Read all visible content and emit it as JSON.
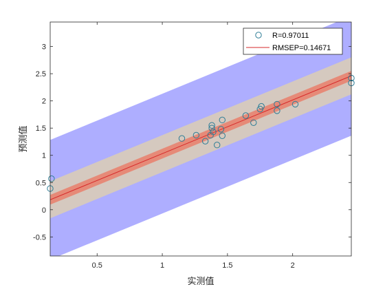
{
  "chart_data": {
    "type": "scatter",
    "xlabel": "实测值",
    "ylabel": "预测值",
    "xlim": [
      0.14,
      2.45
    ],
    "ylim": [
      -0.85,
      3.45
    ],
    "xticks": [
      "0.5",
      "1",
      "1.5",
      "2"
    ],
    "xtick_values": [
      0.5,
      1,
      1.5,
      2
    ],
    "yticks": [
      "-0.5",
      "0",
      "0.5",
      "1",
      "1.5",
      "2",
      "2.5",
      "3"
    ],
    "ytick_values": [
      -0.5,
      0,
      0.5,
      1,
      1.5,
      2,
      2.5,
      3
    ],
    "grid": false,
    "legend_position": "top-right",
    "series": [
      {
        "name": "R=0.97011",
        "kind": "scatter",
        "marker": "open-circle",
        "color": "#2e7d96",
        "x": [
          0.15,
          0.14,
          1.15,
          1.26,
          1.33,
          1.37,
          1.38,
          1.38,
          1.39,
          1.42,
          1.45,
          1.46,
          1.46,
          1.64,
          1.7,
          1.75,
          1.76,
          1.88,
          1.88,
          2.02,
          2.45,
          2.45
        ],
        "y": [
          0.57,
          0.39,
          1.31,
          1.37,
          1.26,
          1.37,
          1.5,
          1.55,
          1.43,
          1.19,
          1.48,
          1.36,
          1.65,
          1.73,
          1.6,
          1.85,
          1.9,
          1.94,
          1.82,
          1.94,
          2.42,
          2.33
        ]
      },
      {
        "name": "RMSEP=0.14671",
        "kind": "line",
        "color": "#d62728",
        "slope": 0.986,
        "intercept": 0.045
      }
    ],
    "bands": [
      {
        "halfwidth": 1.1,
        "color": "#6b6bff",
        "opacity": 0.55
      },
      {
        "halfwidth": 0.34,
        "color": "#f5e08a",
        "opacity": 0.55
      },
      {
        "halfwidth": 0.09,
        "color": "#f2604a",
        "opacity": 0.6
      }
    ]
  }
}
